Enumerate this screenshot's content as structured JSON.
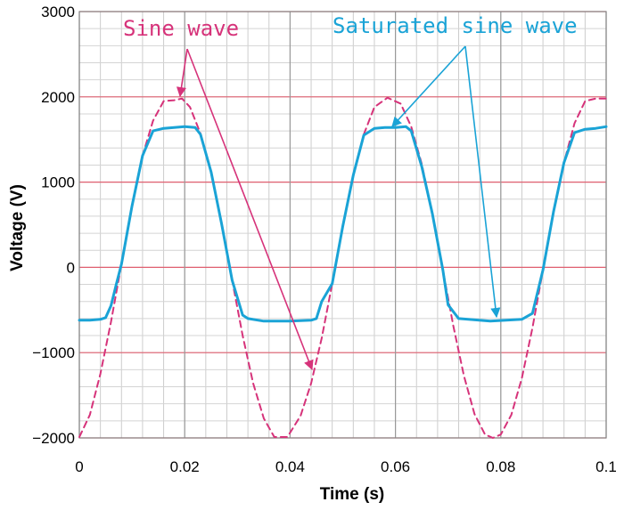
{
  "chart_data": {
    "type": "line",
    "xlabel": "Time (s)",
    "ylabel": "Voltage (V)",
    "xlim": [
      0,
      0.1
    ],
    "ylim": [
      -2000,
      3000
    ],
    "x_ticks": [
      "0",
      "0.02",
      "0.04",
      "0.06",
      "0.08",
      "0.1"
    ],
    "y_ticks": [
      "3000",
      "2000",
      "1000",
      "0",
      "−1000",
      "−2000"
    ],
    "grid": true,
    "series": [
      {
        "name": "Sine wave",
        "style": "dashed",
        "color": "#d6337a",
        "x": [
          0,
          0.002,
          0.004,
          0.006,
          0.008,
          0.01,
          0.012,
          0.014,
          0.016,
          0.018,
          0.0195,
          0.021,
          0.023,
          0.025,
          0.027,
          0.029,
          0.031,
          0.033,
          0.035,
          0.037,
          0.0395,
          0.042,
          0.044,
          0.046,
          0.048,
          0.05,
          0.052,
          0.054,
          0.056,
          0.0585,
          0.061,
          0.063,
          0.065,
          0.067,
          0.069,
          0.071,
          0.073,
          0.075,
          0.077,
          0.0785,
          0.08,
          0.082,
          0.084,
          0.086,
          0.088,
          0.09,
          0.092,
          0.094,
          0.096,
          0.098,
          0.1
        ],
        "values": [
          -1990,
          -1730,
          -1250,
          -640,
          40,
          720,
          1310,
          1720,
          1950,
          1960,
          1980,
          1880,
          1570,
          1110,
          510,
          -150,
          -800,
          -1360,
          -1770,
          -1990,
          -1990,
          -1740,
          -1360,
          -830,
          -190,
          480,
          1080,
          1560,
          1880,
          1990,
          1920,
          1650,
          1210,
          630,
          -30,
          -690,
          -1270,
          -1720,
          -1960,
          -2000,
          -1960,
          -1730,
          -1300,
          -710,
          -30,
          650,
          1230,
          1690,
          1950,
          1980,
          1980
        ]
      },
      {
        "name": "Saturated sine wave",
        "style": "solid",
        "color": "#1aa3d6",
        "x": [
          0,
          0.002,
          0.004,
          0.005,
          0.006,
          0.007,
          0.008,
          0.01,
          0.012,
          0.014,
          0.016,
          0.018,
          0.02,
          0.022,
          0.023,
          0.025,
          0.027,
          0.029,
          0.031,
          0.032,
          0.035,
          0.04,
          0.044,
          0.045,
          0.046,
          0.048,
          0.05,
          0.052,
          0.054,
          0.056,
          0.058,
          0.06,
          0.062,
          0.063,
          0.065,
          0.067,
          0.069,
          0.07,
          0.072,
          0.078,
          0.084,
          0.086,
          0.088,
          0.09,
          0.092,
          0.094,
          0.096,
          0.098,
          0.1
        ],
        "values": [
          -620,
          -620,
          -610,
          -590,
          -450,
          -200,
          40,
          720,
          1310,
          1600,
          1630,
          1640,
          1650,
          1640,
          1560,
          1120,
          510,
          -150,
          -560,
          -600,
          -630,
          -630,
          -620,
          -600,
          -400,
          -190,
          480,
          1080,
          1550,
          1630,
          1640,
          1640,
          1650,
          1600,
          1180,
          630,
          -30,
          -440,
          -600,
          -630,
          -610,
          -540,
          -30,
          650,
          1230,
          1580,
          1620,
          1630,
          1650
        ]
      }
    ],
    "annotations": [
      {
        "text": "Sine wave",
        "color": "#d6337a"
      },
      {
        "text": "Saturated sine wave",
        "color": "#1aa3d6"
      }
    ]
  }
}
